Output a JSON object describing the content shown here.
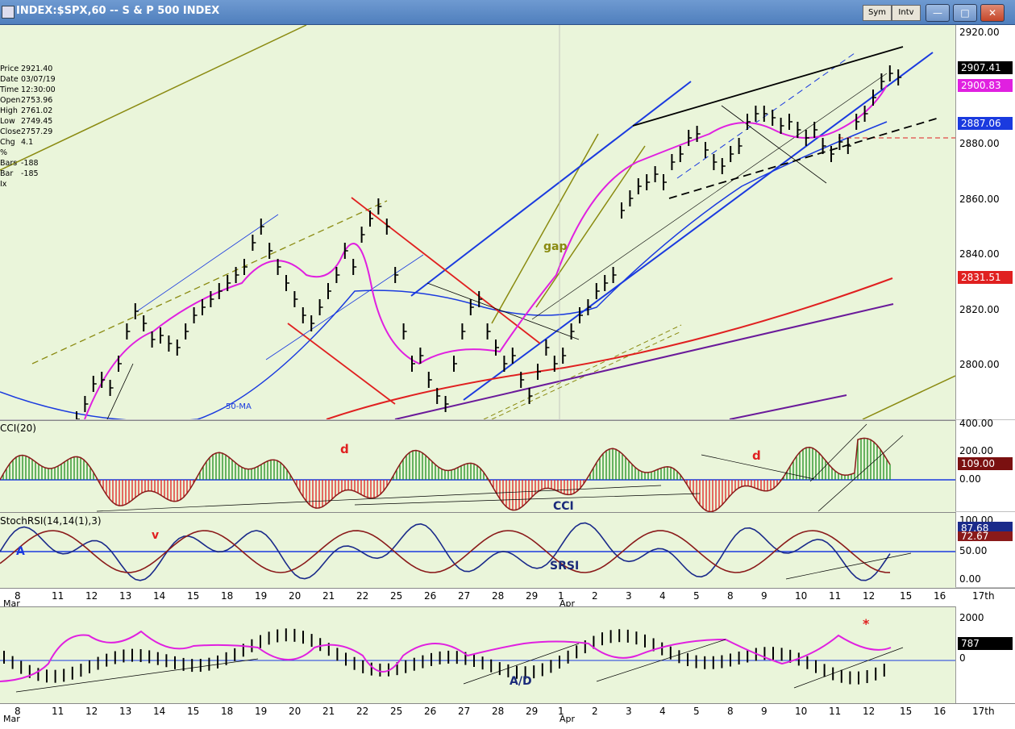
{
  "window": {
    "title": "INDEX:$SPX,60 -- S & P 500 INDEX",
    "sym_button": "Sym",
    "intv_button": "Intv",
    "min_glyph": "—",
    "max_glyph": "□",
    "close_glyph": "✕"
  },
  "info_box": [
    {
      "label": "Price",
      "value": "2921.40"
    },
    {
      "label": "Date",
      "value": "03/07/19"
    },
    {
      "label": "Time",
      "value": "12:30:00"
    },
    {
      "label": "Open",
      "value": "2753.96"
    },
    {
      "label": "High",
      "value": "2761.02"
    },
    {
      "label": "Low",
      "value": "2749.45"
    },
    {
      "label": "Close",
      "value": "2757.29"
    },
    {
      "label": "Chg %",
      "value": "4.1"
    },
    {
      "label": "Bars",
      "value": "-188"
    },
    {
      "label": "Bar Ix",
      "value": "-185"
    }
  ],
  "price_panel": {
    "axis_ticks": [
      "2920.00",
      "2880.00",
      "2860.00",
      "2840.00",
      "2820.00",
      "2800.00"
    ],
    "last_price": "2907.41",
    "ma_value": "2900.83",
    "blue_value": "2887.06",
    "red_value": "2831.51",
    "annotations": {
      "gap": "gap",
      "ma50": "50-MA"
    }
  },
  "cci_panel": {
    "title": "CCI(20)",
    "axis_ticks": [
      "400.00",
      "200.00",
      "0.00"
    ],
    "value": "109.00",
    "label": "CCI",
    "marker_d1": "d",
    "marker_d2": "d"
  },
  "srsi_panel": {
    "title": "StochRSI(14,14(1),3)",
    "axis_ticks": [
      "100.00",
      "50.00",
      "0.00"
    ],
    "value1": "87.68",
    "value2": "72.67",
    "label": "SRSI",
    "marker_a": "A",
    "marker_v": "v"
  },
  "ad_panel": {
    "axis_ticks": [
      "2000",
      "0"
    ],
    "value": "787",
    "label": "A/D",
    "marker": "*"
  },
  "x_axis": {
    "days": [
      "8",
      "11",
      "12",
      "13",
      "14",
      "15",
      "18",
      "19",
      "20",
      "21",
      "22",
      "25",
      "26",
      "27",
      "28",
      "29",
      "1",
      "2",
      "3",
      "4",
      "5",
      "8",
      "9",
      "10",
      "11",
      "12",
      "15",
      "16",
      "17th"
    ],
    "months": [
      "Mar",
      "Apr"
    ]
  },
  "colors": {
    "pane_bg": "#eaf5da",
    "ma_magenta": "#e020e0",
    "blue": "#1a3adf",
    "red": "#e02020",
    "purple": "#6a1a9a",
    "olive": "#8a8a10"
  }
}
